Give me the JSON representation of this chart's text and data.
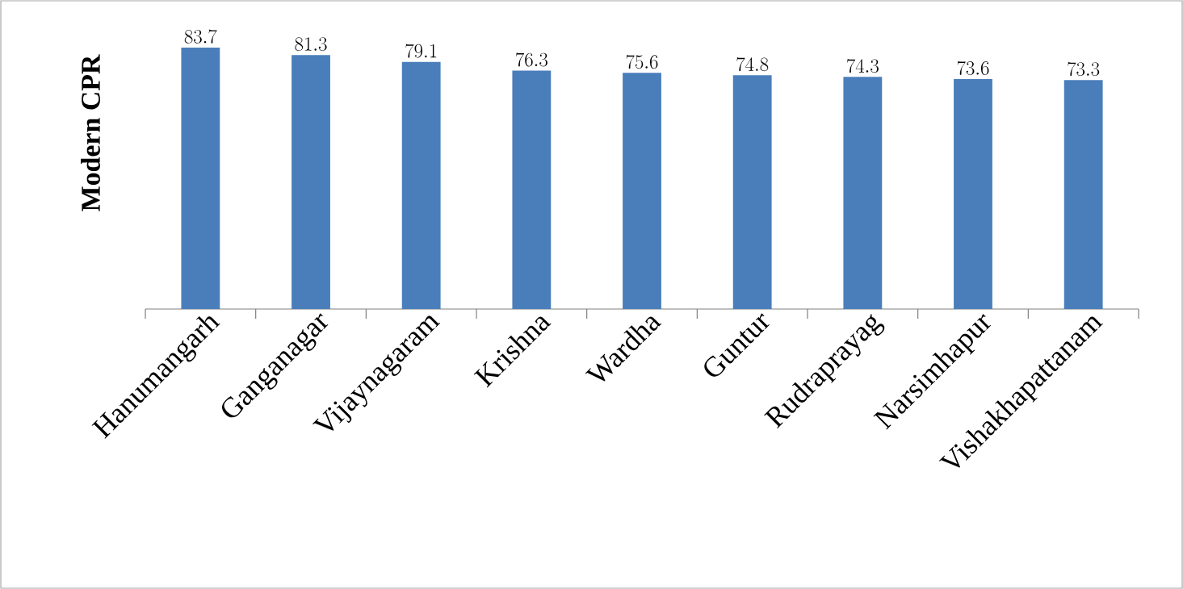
{
  "chart_data": {
    "type": "bar",
    "ylabel": "Modern CPR",
    "categories": [
      "Hanumangarh",
      "Ganganagar",
      "Vijaynagaram",
      "Krishna",
      "Wardha",
      "Guntur",
      "Rudraprayag",
      "Narsimhapur",
      "Vishakhapattanam"
    ],
    "values": [
      83.7,
      81.3,
      79.1,
      76.3,
      75.6,
      74.8,
      74.3,
      73.6,
      73.3
    ],
    "color": "#4a7ebb",
    "data_labels": true
  }
}
